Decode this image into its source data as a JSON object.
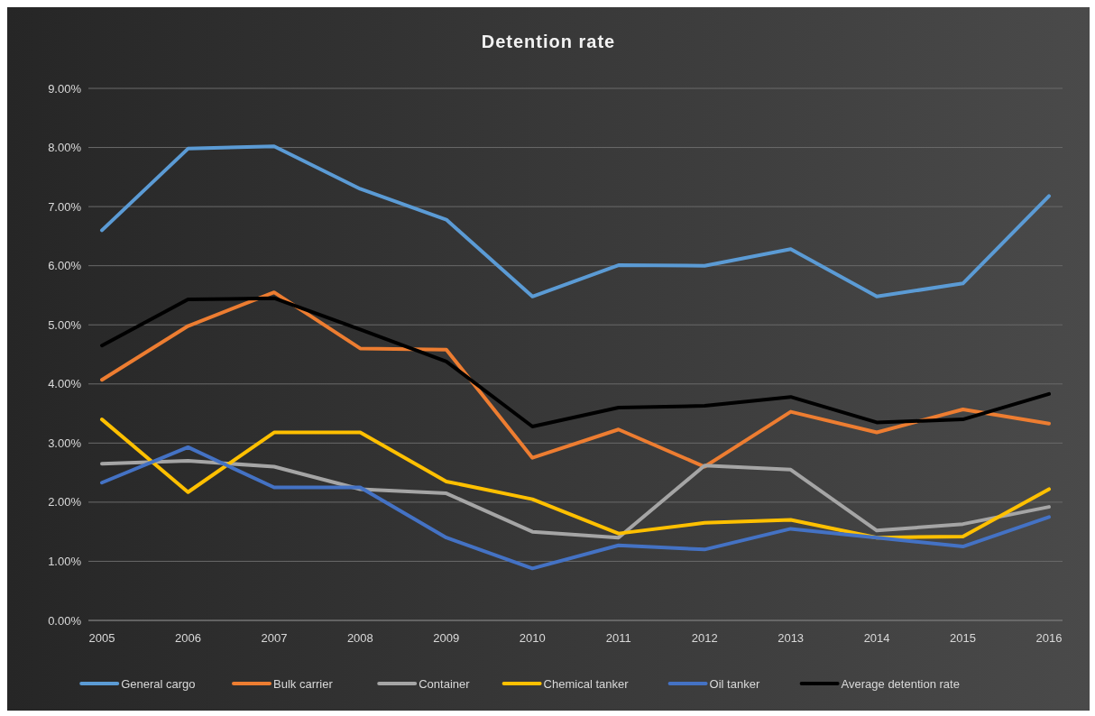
{
  "chart_data": {
    "type": "line",
    "title": "Detention rate",
    "categories": [
      "2005",
      "2006",
      "2007",
      "2008",
      "2009",
      "2010",
      "2011",
      "2012",
      "2013",
      "2014",
      "2015",
      "2016"
    ],
    "series": [
      {
        "name": "General cargo",
        "color": "#5b9bd5",
        "values": [
          6.6,
          7.98,
          8.02,
          7.3,
          6.78,
          5.48,
          6.01,
          6.0,
          6.28,
          5.48,
          5.7,
          7.18
        ]
      },
      {
        "name": "Bulk carrier",
        "color": "#ed7d31",
        "values": [
          4.07,
          4.98,
          5.55,
          4.6,
          4.58,
          2.75,
          3.23,
          2.6,
          3.53,
          3.18,
          3.57,
          3.33
        ]
      },
      {
        "name": "Container",
        "color": "#a5a5a5",
        "values": [
          2.65,
          2.7,
          2.6,
          2.22,
          2.15,
          1.5,
          1.4,
          2.62,
          2.55,
          1.52,
          1.63,
          1.92
        ]
      },
      {
        "name": "Chemical tanker",
        "color": "#ffc000",
        "values": [
          3.4,
          2.17,
          3.18,
          3.18,
          2.35,
          2.05,
          1.47,
          1.65,
          1.7,
          1.4,
          1.42,
          2.22
        ]
      },
      {
        "name": "Oil tanker",
        "color": "#4472c4",
        "values": [
          2.33,
          2.93,
          2.25,
          2.25,
          1.4,
          0.88,
          1.27,
          1.2,
          1.55,
          1.4,
          1.25,
          1.75
        ]
      },
      {
        "name": "Average detention rate",
        "color": "#000000",
        "values": [
          4.65,
          5.43,
          5.45,
          4.92,
          4.38,
          3.28,
          3.6,
          3.63,
          3.78,
          3.35,
          3.4,
          3.83
        ]
      }
    ],
    "ylim": [
      0,
      9
    ],
    "yticks": [
      {
        "value": 0,
        "label": "0.00%"
      },
      {
        "value": 1,
        "label": "1.00%"
      },
      {
        "value": 2,
        "label": "2.00%"
      },
      {
        "value": 3,
        "label": "3.00%"
      },
      {
        "value": 4,
        "label": "4.00%"
      },
      {
        "value": 5,
        "label": "5.00%"
      },
      {
        "value": 6,
        "label": "6.00%"
      },
      {
        "value": 7,
        "label": "7.00%"
      },
      {
        "value": 8,
        "label": "8.00%"
      },
      {
        "value": 9,
        "label": "9.00%"
      }
    ],
    "grid": "y",
    "legend": "bottom",
    "marker": "none",
    "line_style": "solid"
  }
}
